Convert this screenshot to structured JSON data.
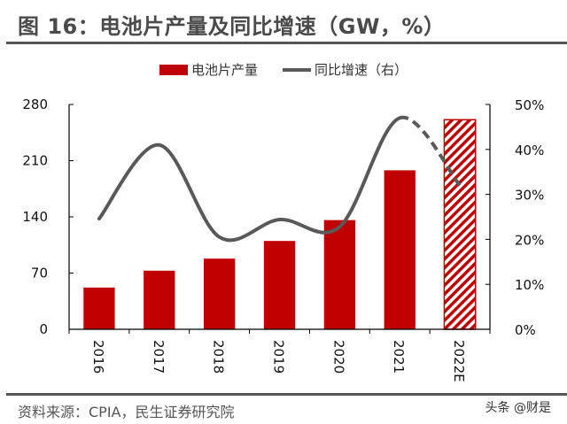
{
  "title": "图 16：电池片产量及同比增速（GW，%）",
  "source": "资料来源：CPIA，民生证券研究院",
  "watermark": "头条 @财是",
  "colors": {
    "bar": "#c00000",
    "line": "#595959",
    "text": "#4a4a4a"
  },
  "chart_data": {
    "type": "bar",
    "title": "图 16：电池片产量及同比增速（GW，%）",
    "categories": [
      "2016",
      "2017",
      "2018",
      "2019",
      "2020",
      "2021",
      "2022E"
    ],
    "series": [
      {
        "name": "电池片产量",
        "type": "bar",
        "axis": "left",
        "values": [
          52,
          73,
          88,
          110,
          136,
          198,
          261
        ],
        "forecast_from": "2022E"
      },
      {
        "name": "同比增速（右）",
        "type": "line",
        "axis": "right",
        "values": [
          24.6,
          41,
          20.5,
          24.4,
          22.8,
          47,
          32
        ],
        "forecast_from": "2021"
      }
    ],
    "y_left": {
      "ylim": [
        0,
        280
      ],
      "ticks": [
        "0",
        "70",
        "140",
        "210",
        "280"
      ],
      "tick_values": [
        0,
        70,
        140,
        210,
        280
      ]
    },
    "y_right": {
      "ylim": [
        0,
        50
      ],
      "ticks": [
        "0%",
        "10%",
        "20%",
        "30%",
        "40%",
        "50%"
      ],
      "tick_values": [
        0,
        10,
        20,
        30,
        40,
        50
      ]
    },
    "legend": {
      "position": "top",
      "entries": [
        "电池片产量",
        "同比增速（右）"
      ]
    },
    "grid": false
  }
}
